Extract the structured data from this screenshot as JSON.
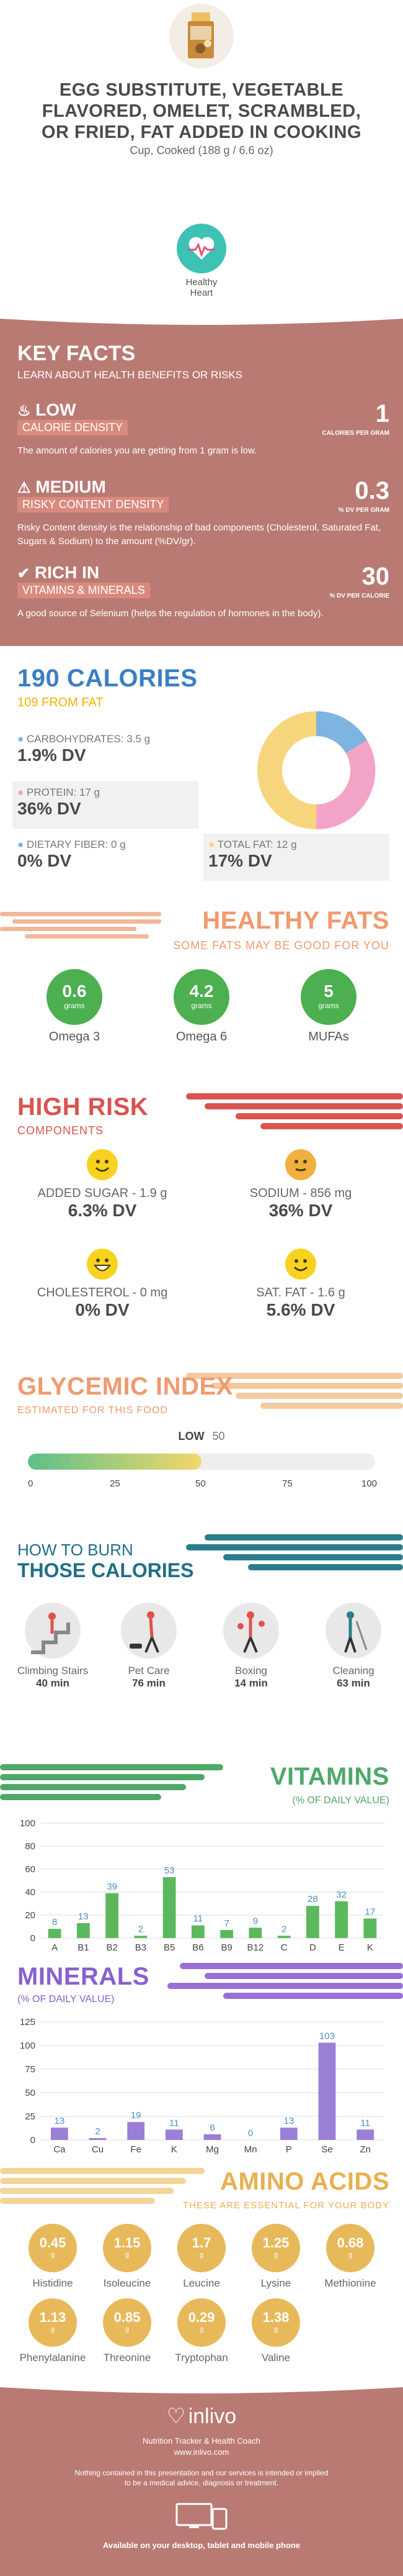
{
  "header": {
    "title_line1": "EGG SUBSTITUTE, VEGETABLE",
    "title_line2": "FLAVORED, OMELET, SCRAMBLED,",
    "title_line3": "OR FRIED, FAT ADDED IN COOKING",
    "serving": "Cup, Cooked (188 g / 6.6 oz)",
    "badge_line1": "Healthy",
    "badge_line2": "Heart"
  },
  "key_facts": {
    "title": "KEY FACTS",
    "subtitle": "LEARN ABOUT HEALTH BENEFITS OR RISKS",
    "items": [
      {
        "head": "LOW",
        "label": "CALORIE DENSITY",
        "value": "1",
        "unit": "CALORIES PER GRAM",
        "desc": "The amount of calories you are getting from 1 gram is low."
      },
      {
        "head": "MEDIUM",
        "label": "RISKY CONTENT DENSITY",
        "value": "0.3",
        "unit": "% DV PER GRAM",
        "desc": "Risky Content density is the relationship of bad components (Cholesterol, Saturated Fat, Sugars & Sodium) to the amount (%DV/gr)."
      },
      {
        "head": "RICH IN",
        "label": "VITAMINS & MINERALS",
        "value": "30",
        "unit": "% DV PER CALORIE",
        "desc": "A good source of Selenium (helps the regulation of hormones in the body)."
      }
    ]
  },
  "calories": {
    "title": "190 CALORIES",
    "from_fat": "109 FROM FAT",
    "carbs_label": "CARBOHYDRATES: 3.5 g",
    "carbs_dv": "1.9% DV",
    "protein_label": "PROTEIN: 17 g",
    "protein_dv": "36% DV",
    "fiber_label": "DIETARY FIBER: 0 g",
    "fiber_dv": "0% DV",
    "fat_label": "TOTAL FAT: 12 g",
    "fat_dv": "17% DV",
    "colors": {
      "carbs": "#7fb3e0",
      "protein": "#f4a3c8",
      "fat": "#f7d57c",
      "fiber": "#7fb3e0"
    }
  },
  "healthy_fats": {
    "title": "HEALTHY FATS",
    "subtitle": "SOME FATS MAY BE GOOD FOR YOU",
    "items": [
      {
        "value": "0.6",
        "unit": "grams",
        "label": "Omega 3"
      },
      {
        "value": "4.2",
        "unit": "grams",
        "label": "Omega 6"
      },
      {
        "value": "5",
        "unit": "grams",
        "label": "MUFAs"
      }
    ]
  },
  "high_risk": {
    "title": "HIGH RISK",
    "subtitle": "COMPONENTS",
    "items": [
      {
        "label": "ADDED SUGAR - 1.9 g",
        "dv": "6.3% DV",
        "face": "smile"
      },
      {
        "label": "SODIUM - 856 mg",
        "dv": "36% DV",
        "face": "neutral"
      },
      {
        "label": "CHOLESTEROL - 0 mg",
        "dv": "0% DV",
        "face": "grin"
      },
      {
        "label": "SAT. FAT - 1.6 g",
        "dv": "5.6% DV",
        "face": "smile"
      }
    ]
  },
  "glycemic": {
    "title": "GLYCEMIC INDEX",
    "subtitle": "ESTIMATED FOR THIS FOOD",
    "level_label": "LOW",
    "value": 50,
    "ticks": [
      "0",
      "25",
      "50",
      "75",
      "100"
    ]
  },
  "burn": {
    "title_line1": "HOW TO BURN",
    "title_line2": "THOSE CALORIES",
    "items": [
      {
        "label": "Climbing Stairs",
        "time": "40 min"
      },
      {
        "label": "Pet Care",
        "time": "76 min"
      },
      {
        "label": "Boxing",
        "time": "14 min"
      },
      {
        "label": "Cleaning",
        "time": "63 min"
      }
    ]
  },
  "vitamins": {
    "title": "VITAMINS",
    "subtitle": "(% OF DAILY VALUE)"
  },
  "minerals": {
    "title": "MINERALS",
    "subtitle": "(% OF DAILY VALUE)"
  },
  "amino": {
    "title": "AMINO ACIDS",
    "subtitle": "THESE ARE ESSENTIAL FOR YOUR BODY",
    "unit": "g",
    "items": [
      {
        "value": "0.45",
        "label": "Histidine"
      },
      {
        "value": "1.15",
        "label": "Isoleucine"
      },
      {
        "value": "1.7",
        "label": "Leucine"
      },
      {
        "value": "1.25",
        "label": "Lysine"
      },
      {
        "value": "0.68",
        "label": "Methionine"
      },
      {
        "value": "1.13",
        "label": "Phenylalanine"
      },
      {
        "value": "0.85",
        "label": "Threonine"
      },
      {
        "value": "0.29",
        "label": "Tryptophan"
      },
      {
        "value": "1.38",
        "label": "Valine"
      }
    ]
  },
  "footer": {
    "brand": "inlivo",
    "tagline": "Nutrition Tracker & Health Coach",
    "url": "www.inlivo.com",
    "disclaimer1": "Nothing contained in this presentation and our services is intended or implied",
    "disclaimer2": "to be a medical advice, diagnosis or treatment.",
    "available": "Available on your desktop, tablet and mobile phone"
  },
  "chart_data": [
    {
      "type": "bar",
      "title": "VITAMINS",
      "ylabel": "(% OF DAILY VALUE)",
      "categories": [
        "A",
        "B1",
        "B2",
        "B3",
        "B5",
        "B6",
        "B9",
        "B12",
        "C",
        "D",
        "E",
        "K"
      ],
      "values": [
        8,
        13,
        39,
        2,
        53,
        11,
        7,
        9,
        2,
        28,
        32,
        17
      ],
      "ylim": [
        0,
        100
      ],
      "yticks": [
        0,
        20,
        40,
        60,
        80,
        100
      ],
      "color": "#5cb85c",
      "grid": true
    },
    {
      "type": "bar",
      "title": "MINERALS",
      "ylabel": "(% OF DAILY VALUE)",
      "categories": [
        "Ca",
        "Cu",
        "Fe",
        "K",
        "Mg",
        "Mn",
        "P",
        "Se",
        "Zn"
      ],
      "values": [
        13,
        2,
        19,
        11,
        6,
        0,
        13,
        103,
        11
      ],
      "ylim": [
        0,
        125
      ],
      "yticks": [
        0,
        25,
        50,
        75,
        100,
        125
      ],
      "color": "#9a7fd6",
      "grid": true
    }
  ]
}
